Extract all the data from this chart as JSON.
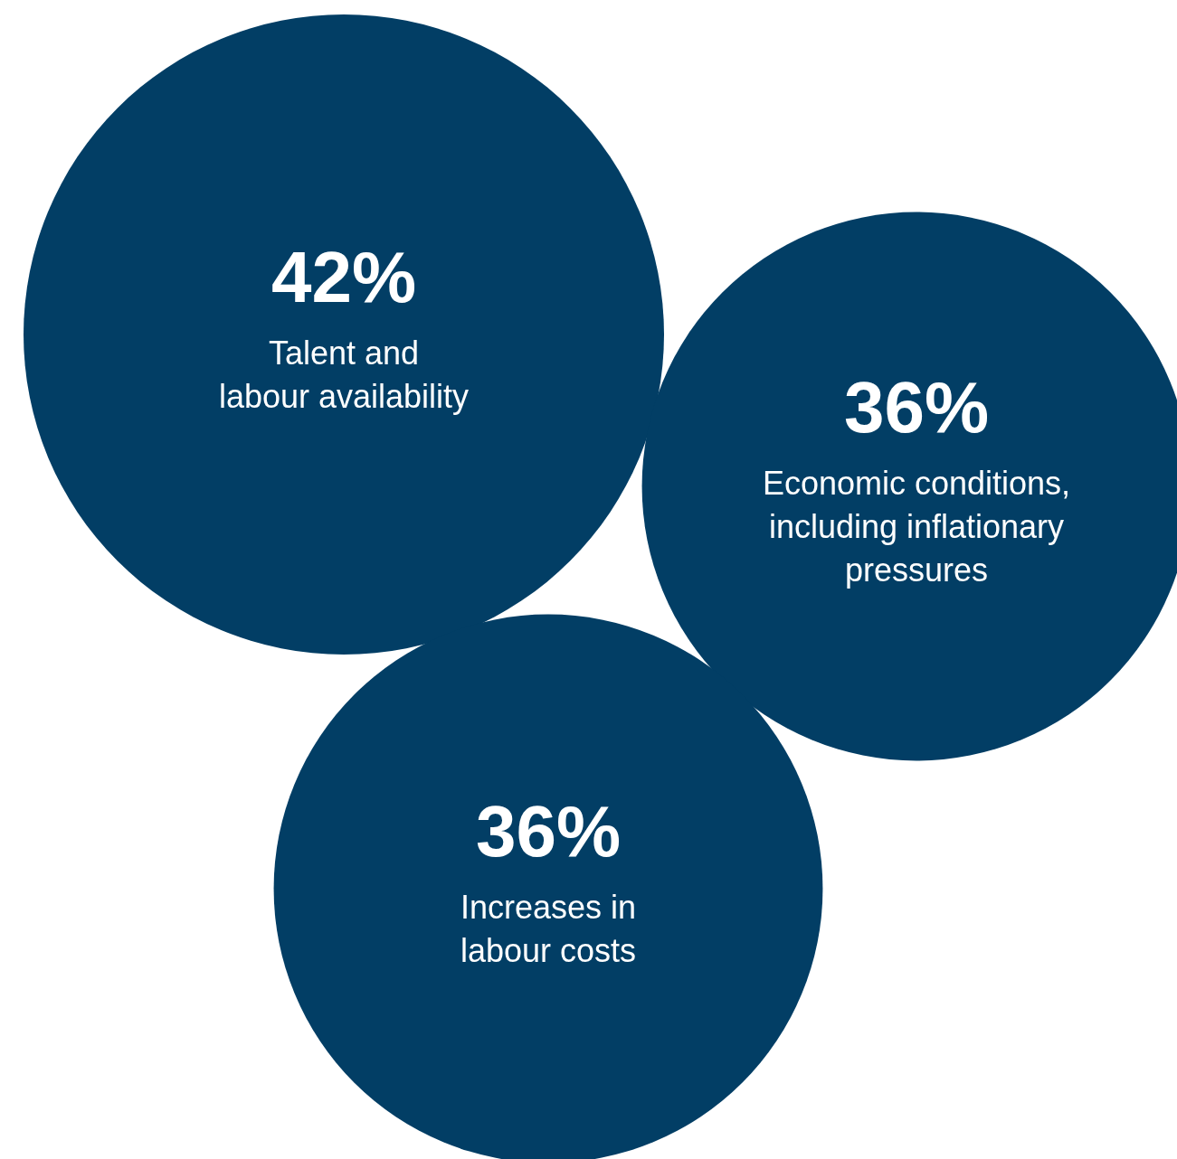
{
  "chart_data": {
    "type": "other",
    "categories": [
      "Talent and labour availability",
      "Economic conditions, including inflationary pressures",
      "Increases in labour costs"
    ],
    "values": [
      42,
      36,
      36
    ],
    "value_labels": [
      "42%",
      "36%",
      "36%"
    ],
    "colors": [
      "#023e65",
      "#023e65",
      "#023e65"
    ]
  }
}
